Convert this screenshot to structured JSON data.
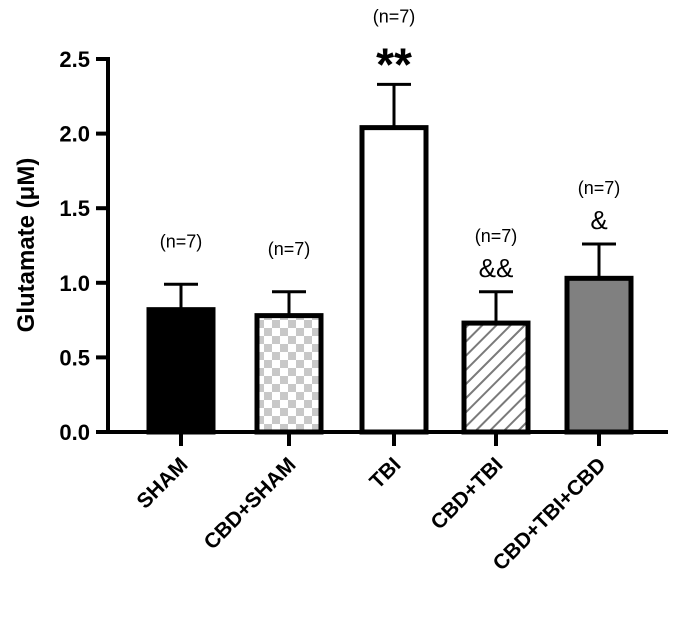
{
  "chart_data": {
    "type": "bar",
    "title": "",
    "xlabel": "",
    "ylabel": "Glutamate (μM)",
    "ylim": [
      0,
      2.5
    ],
    "yticks": [
      "0.0",
      "0.5",
      "1.0",
      "1.5",
      "2.0",
      "2.5"
    ],
    "categories": [
      "SHAM",
      "CBD+SHAM",
      "TBI",
      "CBD+TBI",
      "CBD+TBI+CBD"
    ],
    "values": [
      0.82,
      0.78,
      2.04,
      0.73,
      1.03
    ],
    "errors": [
      0.17,
      0.16,
      0.29,
      0.21,
      0.23
    ],
    "n_labels": [
      "(n=7)",
      "(n=7)",
      "(n=7)",
      "(n=7)",
      "(n=7)"
    ],
    "significance": [
      "",
      "",
      "**",
      "&&",
      "&"
    ],
    "fills": [
      "solid-black",
      "checkerboard",
      "white",
      "diagonal-hatch",
      "solid-gray"
    ],
    "colors": {
      "axis": "#000000",
      "bar_gray": "#808080",
      "check": "#c8c8c8",
      "hatch": "#7a7a7a",
      "background": "#ffffff"
    }
  }
}
